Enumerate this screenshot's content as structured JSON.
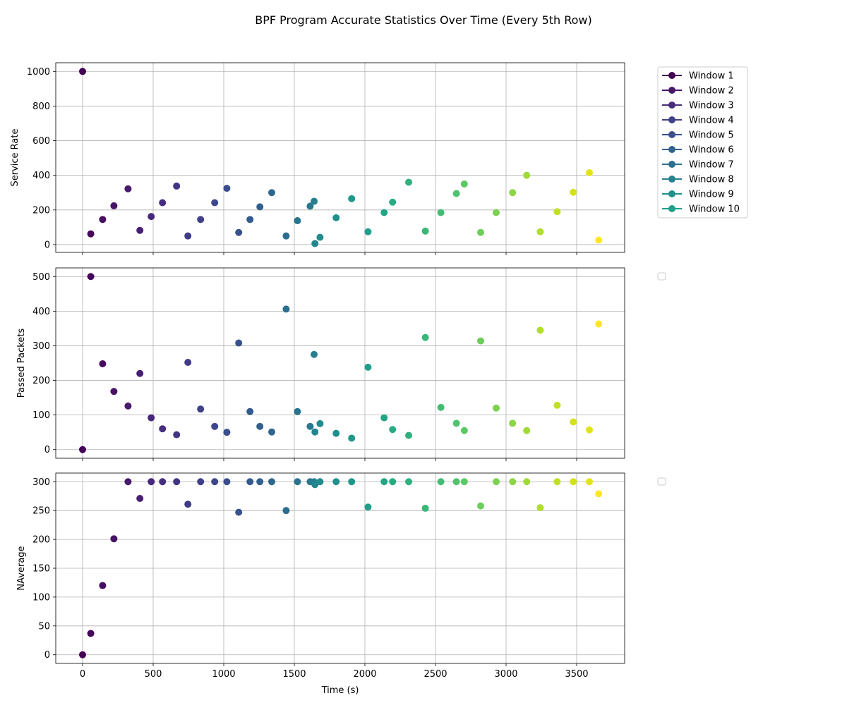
{
  "chart_data": {
    "type": "scatter",
    "title": "BPF Program Accurate Statistics Over Time (Every 5th Row)",
    "xlabel": "Time (s)",
    "xlim": [
      -190,
      3840
    ],
    "xticks": [
      0,
      500,
      1000,
      1500,
      2000,
      2500,
      3000,
      3500
    ],
    "grid": true,
    "colormap": "viridis",
    "legend": {
      "placement": "outside-right",
      "entries": [
        "Window 1",
        "Window 2",
        "Window 3",
        "Window 4",
        "Window 5",
        "Window 6",
        "Window 7",
        "Window 8",
        "Window 9",
        "Window 10"
      ],
      "colors": [
        "#440154",
        "#48186a",
        "#472d7b",
        "#424086",
        "#3b528b",
        "#33638d",
        "#2c728e",
        "#26828e",
        "#21918c",
        "#1fa088"
      ]
    },
    "x": [
      0,
      58,
      142,
      222,
      322,
      406,
      486,
      566,
      666,
      746,
      836,
      936,
      1022,
      1106,
      1186,
      1256,
      1340,
      1442,
      1522,
      1612,
      1640,
      1646,
      1682,
      1796,
      1906,
      2022,
      2136,
      2196,
      2310,
      2428,
      2538,
      2648,
      2704,
      2820,
      2930,
      3046,
      3146,
      3242,
      3362,
      3476,
      3590,
      3656
    ],
    "colors": [
      "#440154",
      "#45065a",
      "#470d60",
      "#471365",
      "#481a6c",
      "#472073",
      "#46277a",
      "#452d7f",
      "#433384",
      "#413a86",
      "#3f4089",
      "#3c478c",
      "#3a4d8d",
      "#37538e",
      "#34598e",
      "#32608e",
      "#2f668e",
      "#2d6d8e",
      "#2a738e",
      "#28798e",
      "#267f8e",
      "#24858e",
      "#218b8d",
      "#1f918c",
      "#1f978a",
      "#1f9e89",
      "#22a585",
      "#27ab82",
      "#2fb17e",
      "#38b779",
      "#43bd74",
      "#4fc36e",
      "#5cc863",
      "#6ccd5a",
      "#7cd250",
      "#8dd544",
      "#9fda3a",
      "#b0dd2f",
      "#c1df24",
      "#d2e21b",
      "#e2e418",
      "#fde725"
    ],
    "panels": [
      {
        "ylabel": "Service Rate",
        "ylim": [
          -45,
          1050
        ],
        "yticks": [
          0,
          200,
          400,
          600,
          800,
          1000
        ],
        "y": [
          1000,
          62,
          145,
          224,
          322,
          82,
          162,
          242,
          338,
          50,
          145,
          242,
          325,
          70,
          145,
          218,
          300,
          50,
          138,
          222,
          250,
          6,
          42,
          155,
          265,
          74,
          185,
          245,
          360,
          78,
          185,
          295,
          350,
          70,
          185,
          300,
          400,
          74,
          190,
          302,
          415,
          26
        ]
      },
      {
        "ylabel": "Passed Packets",
        "ylim": [
          -25,
          525
        ],
        "yticks": [
          0,
          100,
          200,
          300,
          400,
          500
        ],
        "y": [
          0,
          500,
          248,
          168,
          126,
          220,
          92,
          60,
          43,
          252,
          117,
          67,
          50,
          308,
          110,
          67,
          51,
          406,
          110,
          67,
          275,
          51,
          75,
          47,
          33,
          238,
          92,
          58,
          41,
          324,
          122,
          76,
          55,
          314,
          120,
          76,
          55,
          345,
          128,
          80,
          57,
          363
        ]
      },
      {
        "ylabel": "NAverage",
        "ylim": [
          -15,
          315
        ],
        "yticks": [
          0,
          50,
          100,
          150,
          200,
          250,
          300
        ],
        "y": [
          0,
          37,
          120,
          201,
          300,
          271,
          300,
          300,
          300,
          261,
          300,
          300,
          300,
          247,
          300,
          300,
          300,
          250,
          300,
          300,
          300,
          295,
          300,
          300,
          300,
          256,
          300,
          300,
          300,
          254,
          300,
          300,
          300,
          258,
          300,
          300,
          300,
          255,
          300,
          300,
          300,
          279
        ]
      }
    ]
  }
}
